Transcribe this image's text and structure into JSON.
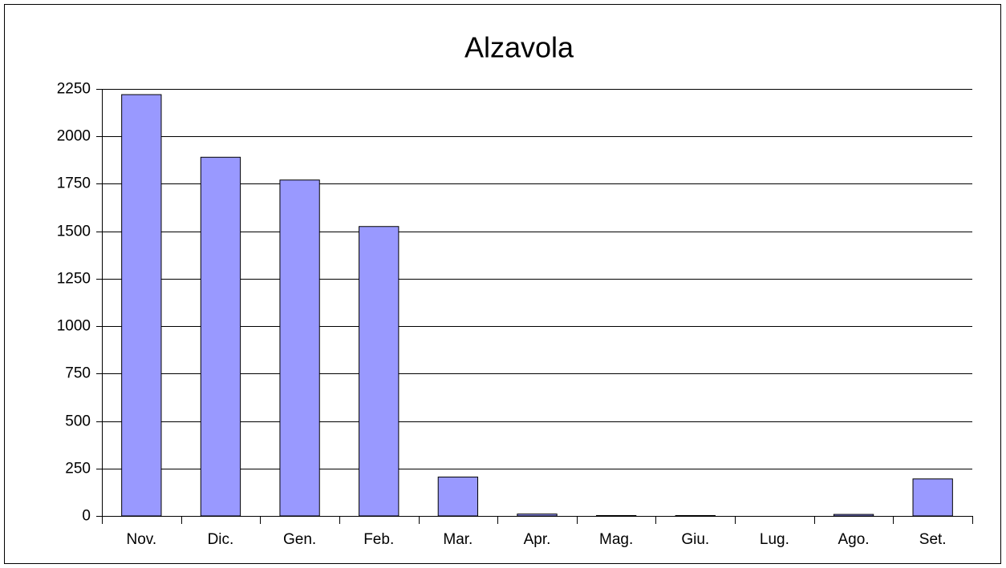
{
  "chart_data": {
    "type": "bar",
    "title": "Alzavola",
    "categories": [
      "Nov.",
      "Dic.",
      "Gen.",
      "Feb.",
      "Mar.",
      "Apr.",
      "Mag.",
      "Giu.",
      "Lug.",
      "Ago.",
      "Set."
    ],
    "values": [
      2220,
      1890,
      1770,
      1525,
      205,
      10,
      2,
      2,
      0,
      8,
      195
    ],
    "color": "#9999ff",
    "ylim": [
      0,
      2250
    ],
    "yticks": [
      0,
      250,
      500,
      750,
      1000,
      1250,
      1500,
      1750,
      2000,
      2250
    ],
    "grid": true
  }
}
